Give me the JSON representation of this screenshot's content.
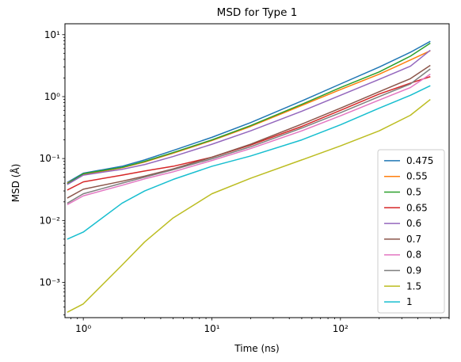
{
  "chart_data": {
    "type": "line",
    "title": "MSD for Type 1",
    "xlabel": "Time (ns)",
    "ylabel": "MSD (Å)",
    "xscale": "log",
    "yscale": "log",
    "xlim": [
      0.72,
      700
    ],
    "ylim": [
      0.00027,
      15
    ],
    "x_ticks": [
      {
        "value": 1,
        "label": "10⁰"
      },
      {
        "value": 10,
        "label": "10¹"
      },
      {
        "value": 100,
        "label": "10²"
      }
    ],
    "y_ticks": [
      {
        "value": 0.001,
        "label": "10⁻³"
      },
      {
        "value": 0.01,
        "label": "10⁻²"
      },
      {
        "value": 0.1,
        "label": "10⁻¹"
      },
      {
        "value": 1,
        "label": "10⁰"
      },
      {
        "value": 10,
        "label": "10¹"
      }
    ],
    "grid": false,
    "legend_position": "lower-right",
    "x": [
      0.75,
      1,
      2,
      3,
      5,
      10,
      20,
      50,
      100,
      200,
      350,
      500
    ],
    "series": [
      {
        "name": "0.475",
        "color": "#1f77b4",
        "values": [
          0.041,
          0.058,
          0.075,
          0.095,
          0.135,
          0.22,
          0.38,
          0.85,
          1.6,
          3.0,
          5.2,
          7.8
        ]
      },
      {
        "name": "0.55",
        "color": "#ff7f0e",
        "values": [
          0.04,
          0.055,
          0.071,
          0.088,
          0.122,
          0.195,
          0.33,
          0.72,
          1.3,
          2.3,
          3.9,
          5.5
        ]
      },
      {
        "name": "0.5",
        "color": "#2ca02c",
        "values": [
          0.039,
          0.057,
          0.072,
          0.09,
          0.125,
          0.2,
          0.34,
          0.75,
          1.4,
          2.5,
          4.5,
          7.3
        ]
      },
      {
        "name": "0.65",
        "color": "#d62728",
        "values": [
          0.031,
          0.042,
          0.054,
          0.063,
          0.075,
          0.105,
          0.165,
          0.33,
          0.6,
          1.1,
          1.65,
          2.1
        ]
      },
      {
        "name": "0.6",
        "color": "#9467bd",
        "values": [
          0.038,
          0.054,
          0.067,
          0.08,
          0.108,
          0.17,
          0.28,
          0.58,
          1.05,
          1.9,
          3.1,
          5.6
        ]
      },
      {
        "name": "0.7",
        "color": "#8c564b",
        "values": [
          0.023,
          0.032,
          0.043,
          0.052,
          0.068,
          0.105,
          0.17,
          0.36,
          0.65,
          1.2,
          1.95,
          3.2
        ]
      },
      {
        "name": "0.8",
        "color": "#e377c2",
        "values": [
          0.018,
          0.025,
          0.037,
          0.047,
          0.061,
          0.093,
          0.145,
          0.28,
          0.49,
          0.88,
          1.4,
          2.3
        ]
      },
      {
        "name": "0.9",
        "color": "#7f7f7f",
        "values": [
          0.019,
          0.027,
          0.04,
          0.05,
          0.066,
          0.099,
          0.155,
          0.31,
          0.55,
          1.0,
          1.6,
          2.8
        ]
      },
      {
        "name": "1.5",
        "color": "#bcbd22",
        "values": [
          0.00033,
          0.00045,
          0.0019,
          0.0045,
          0.011,
          0.027,
          0.048,
          0.095,
          0.16,
          0.28,
          0.5,
          0.9
        ]
      },
      {
        "name": "1",
        "color": "#17becf",
        "values": [
          0.005,
          0.0065,
          0.019,
          0.03,
          0.046,
          0.075,
          0.11,
          0.2,
          0.35,
          0.65,
          1.05,
          1.5
        ]
      }
    ]
  }
}
